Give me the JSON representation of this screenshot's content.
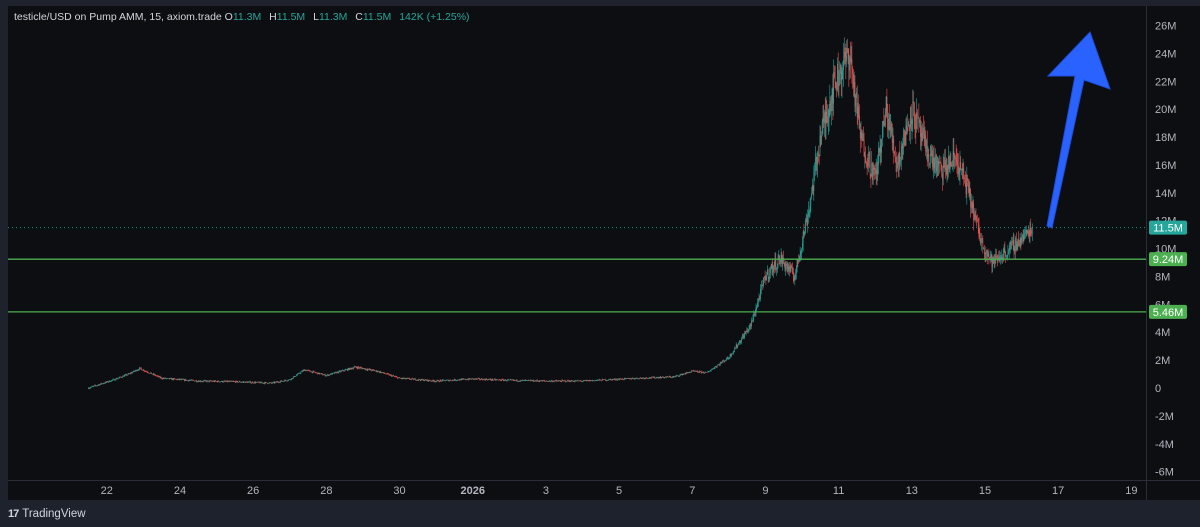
{
  "legend": {
    "symbol": "testicle/USD on Pump AMM, 15, axiom.trade",
    "open_key": "O",
    "open": "11.3M",
    "high_key": "H",
    "high": "11.5M",
    "low_key": "L",
    "low": "11.3M",
    "close_key": "C",
    "close": "11.5M",
    "change": "142K (+1.25%)"
  },
  "brand": {
    "logo": "17",
    "name": "TradingView"
  },
  "colors": {
    "up": "#26a69a",
    "down": "#ef5350",
    "hline": "#4caf50",
    "badge_last": "#26a69a",
    "badge_line": "#4caf50",
    "arrow": "#2962ff"
  },
  "chart_data": {
    "type": "candlestick",
    "y_ticks": [
      "26M",
      "24M",
      "22M",
      "20M",
      "18M",
      "16M",
      "14M",
      "12M",
      "10M",
      "8M",
      "6M",
      "4M",
      "2M",
      "0",
      "-2M",
      "-4M",
      "-6M"
    ],
    "y_values": [
      26,
      24,
      22,
      20,
      18,
      16,
      14,
      12,
      10,
      8,
      6,
      4,
      2,
      0,
      -2,
      -4,
      -6
    ],
    "ylim": [
      -6.6,
      27.4
    ],
    "x_ticks": [
      "22",
      "24",
      "26",
      "28",
      "30",
      "2026",
      "3",
      "5",
      "7",
      "9",
      "11",
      "13",
      "15",
      "17",
      "19"
    ],
    "x_tick_days": [
      22,
      24,
      26,
      28,
      30,
      32,
      34,
      36,
      38,
      40,
      42,
      44,
      46,
      48,
      50
    ],
    "xlim": [
      19.3,
      50.4
    ],
    "price_path_days": [
      21.5,
      22.2,
      22.6,
      22.9,
      23.5,
      24.5,
      25.5,
      26.5,
      27.0,
      27.4,
      28.0,
      28.8,
      29.4,
      30.0,
      31,
      32,
      33,
      34,
      35,
      36.5,
      37.5,
      38.0,
      38.4,
      39.0,
      39.6,
      40.0,
      40.4,
      40.8,
      41.2,
      41.5,
      41.9,
      42.3,
      42.6,
      43.0,
      43.3,
      43.6,
      44.0,
      44.4,
      44.8,
      45.2,
      45.5,
      45.9,
      46.2,
      46.6,
      47.0,
      47.3
    ],
    "price_path_values": [
      0,
      0.6,
      1.0,
      1.4,
      0.7,
      0.5,
      0.45,
      0.35,
      0.6,
      1.3,
      0.9,
      1.5,
      1.2,
      0.7,
      0.5,
      0.65,
      0.55,
      0.5,
      0.5,
      0.7,
      0.8,
      1.2,
      1.1,
      2.2,
      4.5,
      8.0,
      9.3,
      8.0,
      13,
      18,
      22,
      24,
      18,
      15,
      20,
      16,
      20,
      17,
      15.5,
      16.5,
      14.5,
      10.5,
      9.0,
      9.8,
      10.7,
      11.5
    ],
    "horizontal_lines": [
      {
        "value": 9.24,
        "label": "9.24M"
      },
      {
        "value": 5.46,
        "label": "5.46M"
      }
    ],
    "last_price": {
      "value": 11.5,
      "label": "11.5M"
    }
  }
}
